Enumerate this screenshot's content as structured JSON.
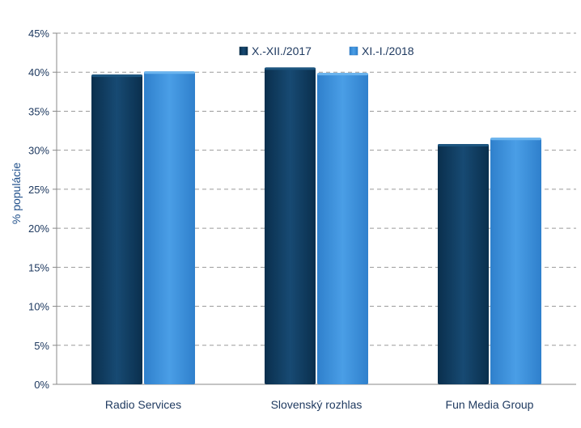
{
  "chart_data": {
    "type": "bar",
    "title": "",
    "xlabel": "",
    "ylabel": "% populácie",
    "categories": [
      "Radio Services",
      "Slovenský rozhlas",
      "Fun Media Group"
    ],
    "series": [
      {
        "name": "X.-XII./2017",
        "values": [
          39.7,
          40.6,
          30.8
        ],
        "color": "#0d3a5e"
      },
      {
        "name": "XI.-I./2018",
        "values": [
          40.1,
          39.9,
          31.6
        ],
        "color": "#3a8fd9"
      }
    ],
    "ylim": [
      0,
      45
    ],
    "yticks": [
      0,
      5,
      10,
      15,
      20,
      25,
      30,
      35,
      40,
      45
    ],
    "ytick_labels": [
      "0%",
      "5%",
      "10%",
      "15%",
      "20%",
      "25%",
      "30%",
      "35%",
      "40%",
      "45%"
    ],
    "grid": true,
    "legend_position": "top-center"
  }
}
